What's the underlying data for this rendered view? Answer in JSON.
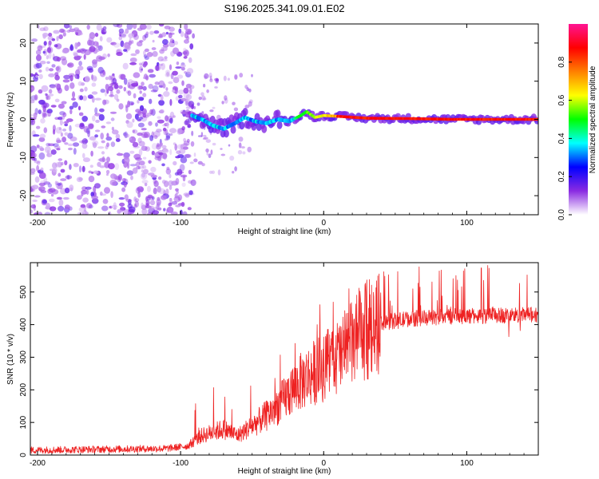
{
  "figure": {
    "title": "S196.2025.341.09.01.E02"
  },
  "chart_data": [
    {
      "type": "heatmap",
      "name": "spectrogram",
      "xlabel": "Height of straight line (km)",
      "ylabel": "Frequency (Hz)",
      "xlim": [
        -205,
        150
      ],
      "ylim": [
        -25,
        25
      ],
      "xticks": [
        -200,
        -100,
        0,
        100
      ],
      "yticks": [
        -20,
        -10,
        0,
        10,
        20
      ],
      "xtick_labels": [
        "-200",
        "-100",
        "0",
        "100"
      ],
      "ytick_labels": [
        "-20",
        "-10",
        "0",
        "10",
        "20"
      ],
      "noise_region": {
        "x_from": -205,
        "x_to": -95,
        "f_from": -25,
        "f_to": 25
      },
      "ridge": [
        {
          "x": -92,
          "f": 1.0
        },
        {
          "x": -85,
          "f": 0.0
        },
        {
          "x": -78,
          "f": -1.5
        },
        {
          "x": -70,
          "f": -2.5
        },
        {
          "x": -62,
          "f": -1.0
        },
        {
          "x": -55,
          "f": 0.5
        },
        {
          "x": -48,
          "f": -0.5
        },
        {
          "x": -40,
          "f": -1.0
        },
        {
          "x": -32,
          "f": 0.0
        },
        {
          "x": -24,
          "f": -0.5
        },
        {
          "x": -16,
          "f": 1.0
        },
        {
          "x": -12,
          "f": 2.0
        },
        {
          "x": -6,
          "f": 0.5
        },
        {
          "x": 0,
          "f": 1.0
        },
        {
          "x": 10,
          "f": 0.8
        },
        {
          "x": 30,
          "f": 0.3
        },
        {
          "x": 60,
          "f": 0.2
        },
        {
          "x": 90,
          "f": 0.0
        },
        {
          "x": 120,
          "f": 0.0
        },
        {
          "x": 150,
          "f": 0.0
        }
      ],
      "colorbar": {
        "label": "Normalized spectral amplitude",
        "range": [
          0,
          1
        ],
        "ticks": [
          0.0,
          0.2,
          0.4,
          0.6,
          0.8
        ],
        "tick_labels": [
          "0.0",
          "0.2",
          "0.4",
          "0.6",
          "0.8"
        ],
        "colors": [
          "#ffffff",
          "#8a2be2",
          "#0000ff",
          "#00ffff",
          "#00ff00",
          "#ffff00",
          "#ff8000",
          "#ff0000",
          "#ff1493"
        ]
      }
    },
    {
      "type": "line",
      "name": "snr",
      "xlabel": "Height of straight line (km)",
      "ylabel": "SNR (10 * v/v)",
      "xlim": [
        -205,
        150
      ],
      "ylim": [
        0,
        590
      ],
      "xticks": [
        -200,
        -100,
        0,
        100
      ],
      "yticks": [
        0,
        100,
        200,
        300,
        400,
        500
      ],
      "xtick_labels": [
        "-200",
        "-100",
        "0",
        "100"
      ],
      "ytick_labels": [
        "0",
        "100",
        "200",
        "300",
        "400",
        "500"
      ],
      "color": "#ee2222",
      "trend": [
        {
          "x": -205,
          "y": 15
        },
        {
          "x": -150,
          "y": 18
        },
        {
          "x": -110,
          "y": 20
        },
        {
          "x": -95,
          "y": 28
        },
        {
          "x": -85,
          "y": 60
        },
        {
          "x": -70,
          "y": 80
        },
        {
          "x": -60,
          "y": 60
        },
        {
          "x": -50,
          "y": 90
        },
        {
          "x": -40,
          "y": 120
        },
        {
          "x": -30,
          "y": 160
        },
        {
          "x": -20,
          "y": 210
        },
        {
          "x": -10,
          "y": 245
        },
        {
          "x": 0,
          "y": 270
        },
        {
          "x": 10,
          "y": 300
        },
        {
          "x": 20,
          "y": 340
        },
        {
          "x": 30,
          "y": 380
        },
        {
          "x": 40,
          "y": 405
        },
        {
          "x": 60,
          "y": 418
        },
        {
          "x": 90,
          "y": 425
        },
        {
          "x": 120,
          "y": 428
        },
        {
          "x": 150,
          "y": 430
        }
      ]
    }
  ]
}
